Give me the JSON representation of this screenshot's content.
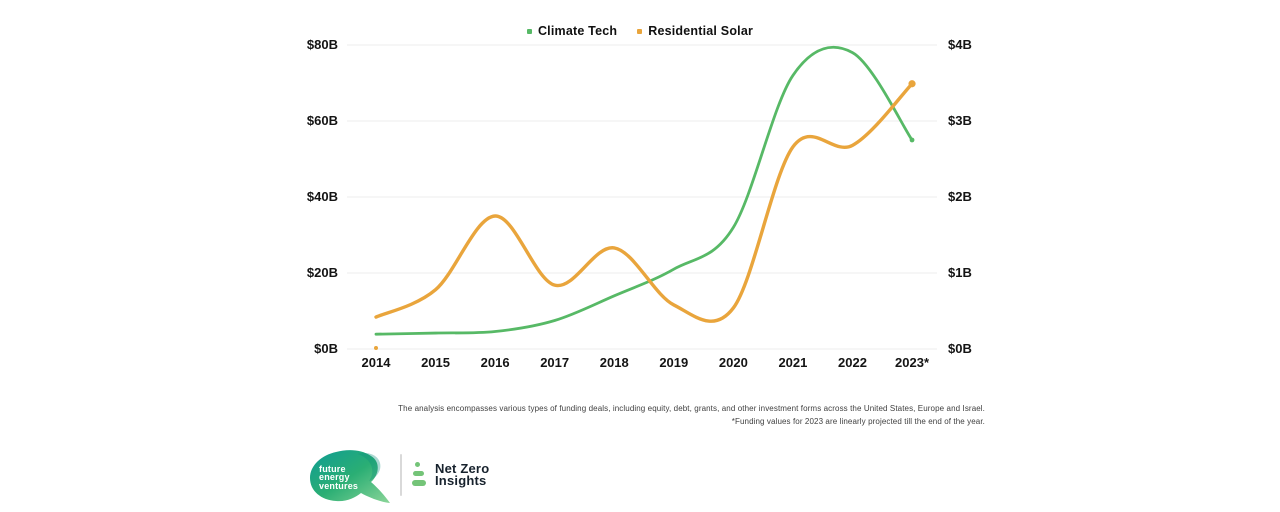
{
  "chart_data": {
    "type": "line",
    "categories": [
      "2014",
      "2015",
      "2016",
      "2017",
      "2018",
      "2019",
      "2020",
      "2021",
      "2022",
      "2023*"
    ],
    "series": [
      {
        "name": "Climate Tech",
        "axis": "left",
        "color": "#57B966",
        "values": [
          3.9,
          4.2,
          4.6,
          7.5,
          14,
          21,
          32,
          72,
          78,
          55
        ]
      },
      {
        "name": "Residential Solar",
        "axis": "right",
        "color": "#E9A53C",
        "values": [
          0.42,
          0.78,
          1.75,
          0.84,
          1.33,
          0.58,
          0.54,
          2.66,
          2.68,
          3.49
        ]
      }
    ],
    "left_axis": {
      "ticks": [
        "$80B",
        "$60B",
        "$40B",
        "$20B",
        "$0B"
      ],
      "values": [
        80,
        60,
        40,
        20,
        0
      ],
      "max": 80,
      "unit": "$B"
    },
    "right_axis": {
      "ticks": [
        "$4B",
        "$3B",
        "$2B",
        "$1B",
        "$0B"
      ],
      "values": [
        4,
        3,
        2,
        1,
        0
      ],
      "max": 4,
      "unit": "$B"
    },
    "legend_position": "top-center",
    "grid": "horizontal",
    "gridline_color": "#ececec",
    "extra_markers": [
      {
        "series": "Residential Solar",
        "category": "2014",
        "value": 0,
        "note": "small orange dot on baseline"
      }
    ]
  },
  "footnotes": {
    "line1": "The analysis encompasses various types of funding deals, including equity, debt, grants, and other investment forms across the United States, Europe and Israel.",
    "line2": "*Funding values for 2023 are linearly projected till the end of the year."
  },
  "branding": {
    "fev": {
      "line1": "future",
      "line2": "energy",
      "line3": "ventures",
      "color_start": "#0E9C94",
      "color_mid": "#2AAE74",
      "color_end": "#8BD598"
    },
    "nzi": {
      "line1": "Net Zero",
      "line2": "Insights",
      "icon_color": "#74C478",
      "icon": "dot-dash-dash"
    }
  }
}
